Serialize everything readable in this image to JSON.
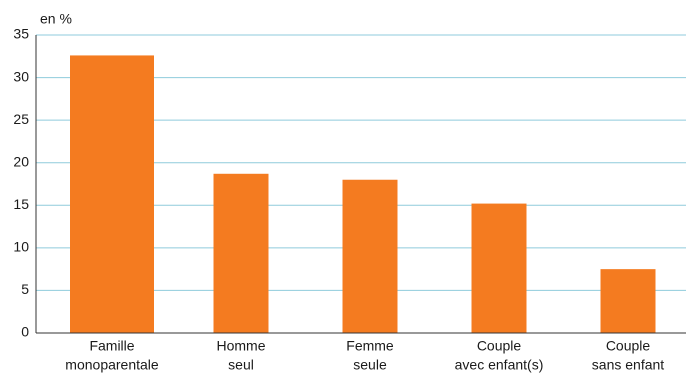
{
  "chart_data": {
    "type": "bar",
    "y_label": "en %",
    "categories": [
      [
        "Famille",
        "monoparentale"
      ],
      [
        "Homme",
        "seul"
      ],
      [
        "Femme",
        "seule"
      ],
      [
        "Couple",
        "avec enfant(s)"
      ],
      [
        "Couple",
        "sans enfant"
      ]
    ],
    "values": [
      32.6,
      18.7,
      18.0,
      15.2,
      7.5
    ],
    "color": "#f47b20",
    "ylim": [
      0,
      35
    ],
    "yticks": [
      0,
      5,
      10,
      15,
      20,
      25,
      30,
      35
    ],
    "grid": true,
    "grid_color": "#8fcbdc"
  }
}
